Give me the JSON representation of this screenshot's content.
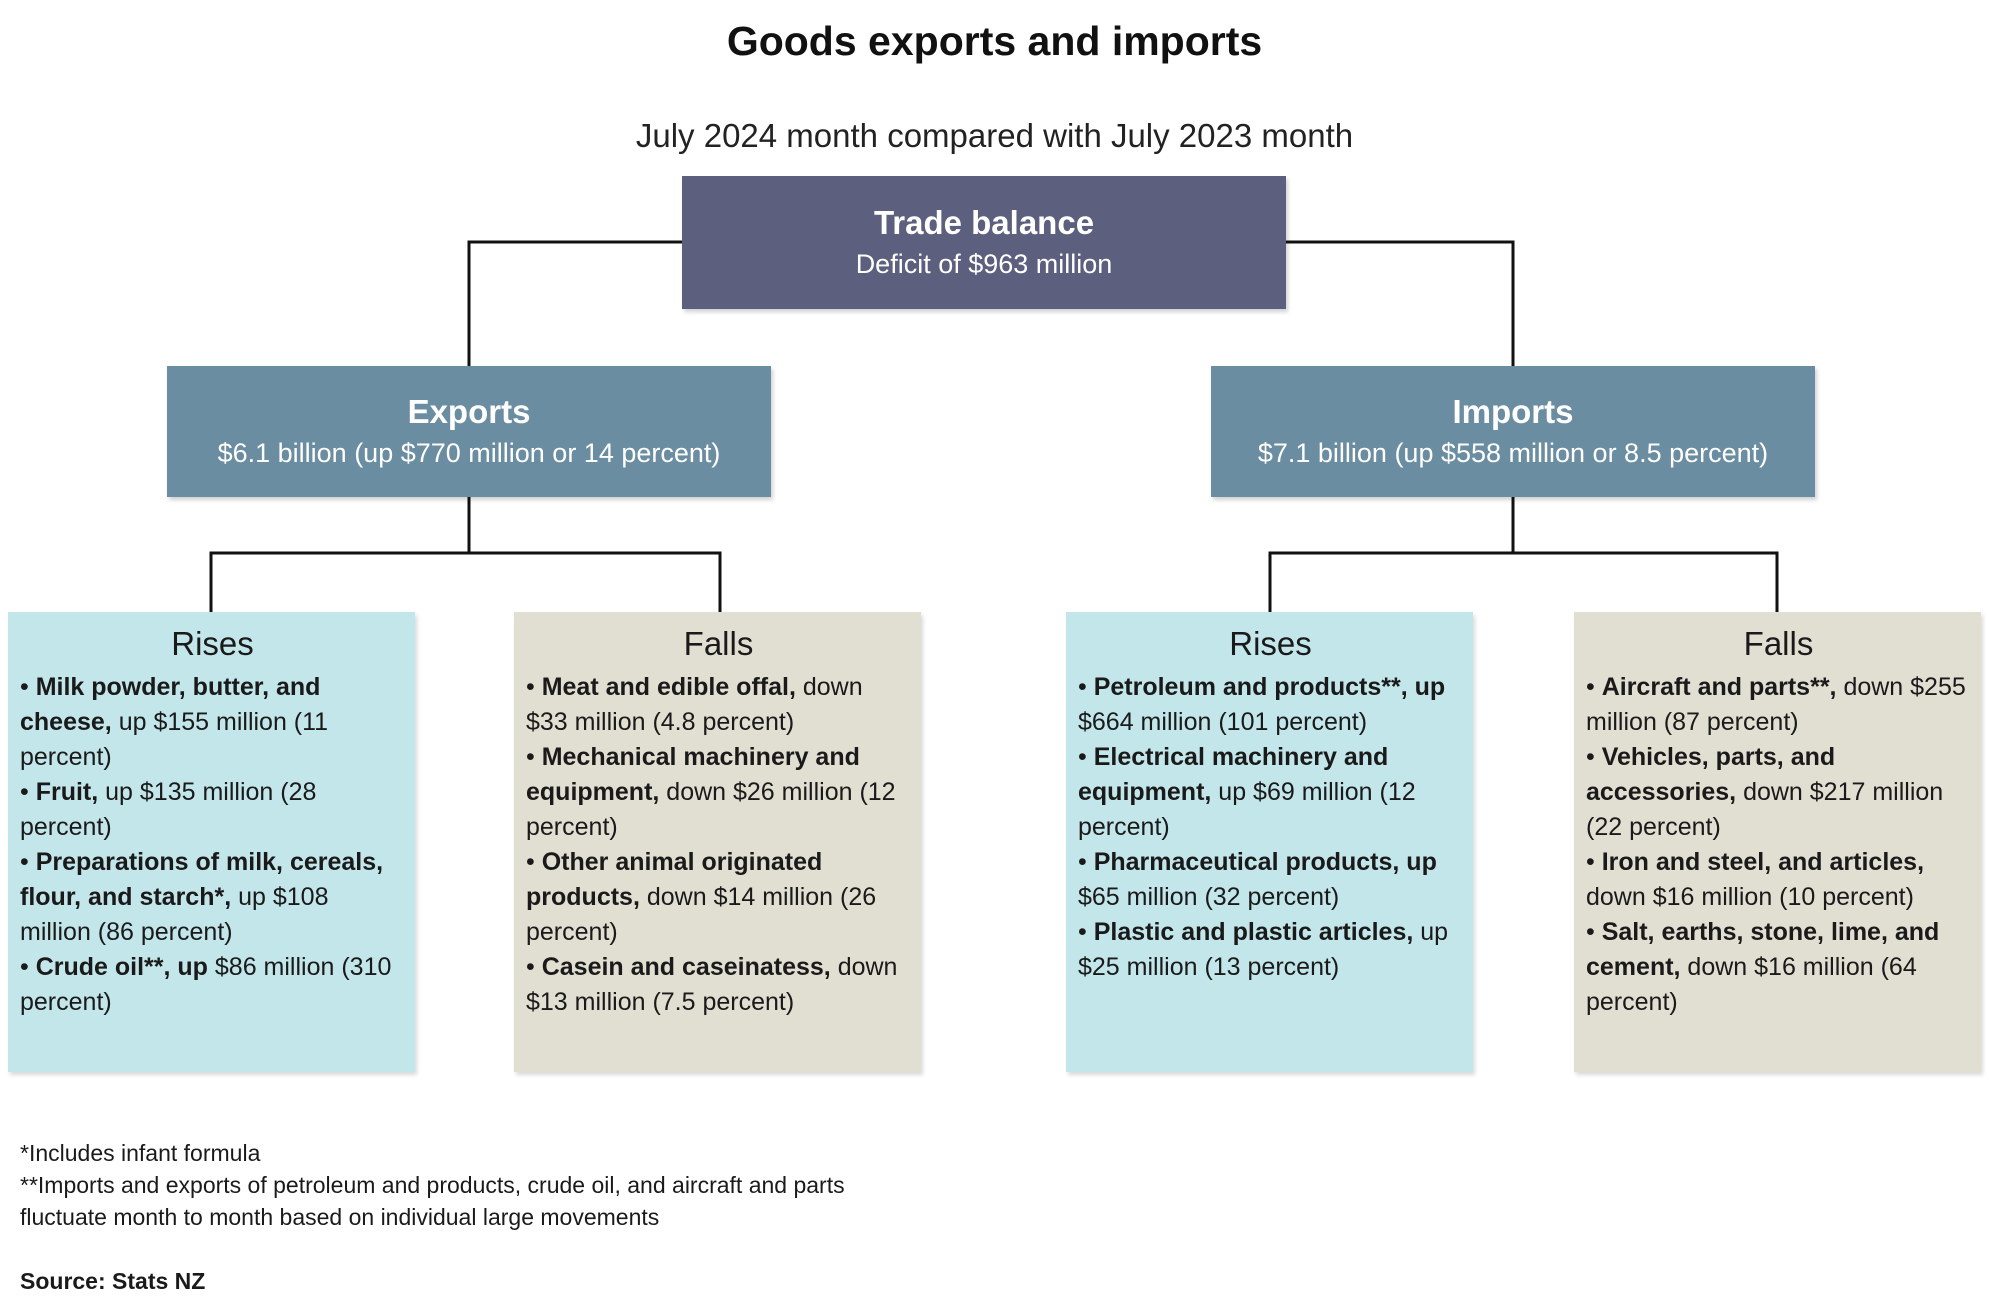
{
  "title": "Goods exports and imports",
  "subtitle": "July 2024 month compared with July 2023 month",
  "colors": {
    "trade_balance_box": "#5c5f7d",
    "exports_imports_box": "#6a8da1",
    "rises_box": "#c2e6ea",
    "falls_box": "#e1ded2",
    "connector": "#111111"
  },
  "trade_balance": {
    "heading": "Trade balance",
    "detail": "Deficit of $963 million"
  },
  "exports": {
    "heading": "Exports",
    "detail": "$6.1 billion (up $770 million or 14 percent)",
    "rises": {
      "heading": "Rises",
      "items": [
        {
          "bold": "Milk powder, butter, and cheese,",
          "text": " up $155 million (11 percent)"
        },
        {
          "bold": "Fruit,",
          "text": " up $135 million (28 percent)"
        },
        {
          "bold": "Preparations of milk, cereals, flour, and starch*,",
          "text": " up $108 million (86 percent)"
        },
        {
          "bold": "Crude oil**, up",
          "text": " $86 million (310 percent)"
        }
      ]
    },
    "falls": {
      "heading": "Falls",
      "items": [
        {
          "bold": "Meat and edible offal,",
          "text": " down $33 million (4.8 percent)"
        },
        {
          "bold": "Mechanical machinery and equipment,",
          "text": " down $26 million (12 percent)"
        },
        {
          "bold": "Other animal originated products,",
          "text": " down $14 million (26 percent)"
        },
        {
          "bold": "Casein and caseinatess,",
          "text": " down $13 million (7.5 percent)"
        }
      ]
    }
  },
  "imports": {
    "heading": "Imports",
    "detail": "$7.1 billion (up $558 million or 8.5 percent)",
    "rises": {
      "heading": "Rises",
      "items": [
        {
          "bold": " Petroleum and products**, up",
          "text": " $664 million (101 percent)"
        },
        {
          "bold": "Electrical machinery and equipment,",
          "text": " up $69 million (12 percent)"
        },
        {
          "bold": "Pharmaceutical products, up",
          "text": " $65 million (32 percent)"
        },
        {
          "bold": "Plastic and plastic articles,",
          "text": " up $25 million (13 percent)"
        }
      ]
    },
    "falls": {
      "heading": "Falls",
      "items": [
        {
          "bold": "Aircraft and parts**,",
          "text": " down $255 million (87 percent)"
        },
        {
          "bold": "Vehicles, parts, and accessories,",
          "text": " down $217 million (22 percent)"
        },
        {
          "bold": "Iron and steel, and articles,",
          "text": " down $16 million (10 percent)"
        },
        {
          "bold": "Salt, earths, stone, lime, and cement,",
          "text": " down $16 million (64 percent)"
        }
      ]
    }
  },
  "footnotes": [
    "*Includes infant formula",
    "**Imports and exports of petroleum and products, crude oil, and aircraft and parts fluctuate month to month based on individual large movements"
  ],
  "source": "Source: Stats NZ"
}
